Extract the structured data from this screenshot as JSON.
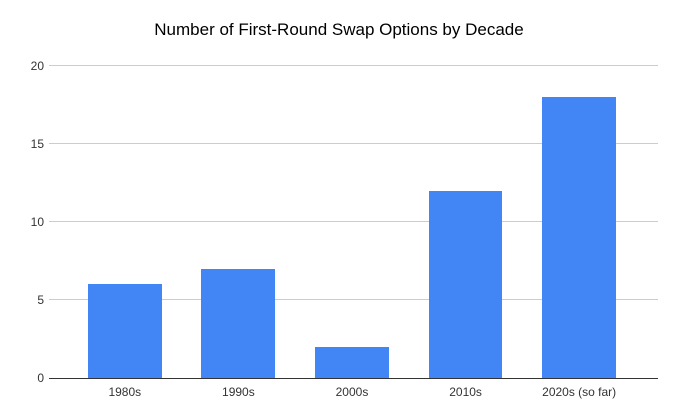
{
  "chart_data": {
    "type": "bar",
    "title": "Number of First-Round Swap Options by Decade",
    "categories": [
      "1980s",
      "1990s",
      "2000s",
      "2010s",
      "2020s (so far)"
    ],
    "values": [
      6,
      7,
      2,
      12,
      18
    ],
    "xlabel": "",
    "ylabel": "",
    "ylim": [
      0,
      20
    ],
    "yticks": [
      0,
      5,
      10,
      15,
      20
    ],
    "grid": true,
    "legend": "none",
    "colors": {
      "bar": "#4285f4",
      "gridline": "#cccccc",
      "axis_line": "#333333",
      "title_text": "#000000",
      "tick_text": "#333333",
      "background": "#ffffff"
    }
  }
}
